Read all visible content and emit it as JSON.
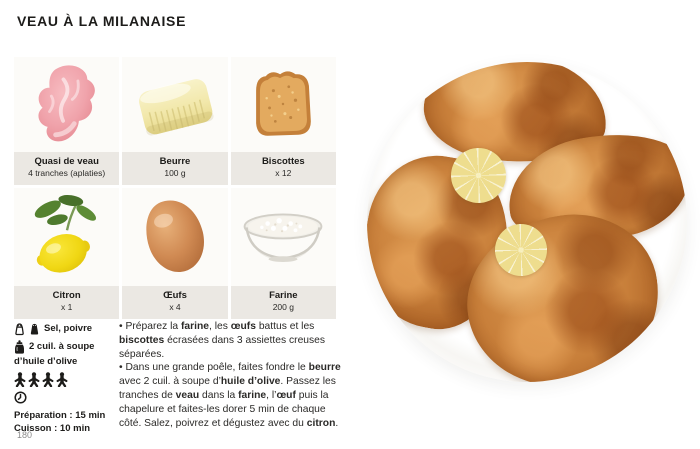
{
  "page": {
    "title": "VEAU À LA MILANAISE",
    "page_number": "180"
  },
  "ingredients": [
    {
      "name": "Quasi de veau",
      "qty": "4 tranches (aplaties)",
      "icon": "veal-slice-icon"
    },
    {
      "name": "Beurre",
      "qty": "100 g",
      "icon": "butter-icon"
    },
    {
      "name": "Biscottes",
      "qty": "x 12",
      "icon": "rusk-icon"
    },
    {
      "name": "Citron",
      "qty": "x 1",
      "icon": "lemon-icon"
    },
    {
      "name": "Œufs",
      "qty": "x 4",
      "icon": "egg-icon"
    },
    {
      "name": "Farine",
      "qty": "200 g",
      "icon": "flour-bowl-icon"
    }
  ],
  "info": {
    "seasoning": "Sel, poivre",
    "oil_line1": "2 cuil. à soupe",
    "oil_line2": "d’huile d’olive",
    "servings": 4,
    "prep": "Préparation : 15 min",
    "cook": "Cuisson : 10 min"
  },
  "instructions": [
    {
      "segments": [
        {
          "t": "• Préparez la "
        },
        {
          "t": "farine",
          "b": true
        },
        {
          "t": ", les "
        },
        {
          "t": "œufs",
          "b": true
        },
        {
          "t": " battus et les "
        },
        {
          "t": "biscottes",
          "b": true
        },
        {
          "t": " écrasées dans 3 assiettes creuses séparées."
        }
      ]
    },
    {
      "segments": [
        {
          "t": "• Dans une grande poêle, faites fondre le "
        },
        {
          "t": "beurre",
          "b": true
        },
        {
          "t": " avec 2 cuil. à soupe d’"
        },
        {
          "t": "huile d’olive",
          "b": true
        },
        {
          "t": ". Passez les tranches de "
        },
        {
          "t": "veau",
          "b": true
        },
        {
          "t": " dans la "
        },
        {
          "t": "farine",
          "b": true
        },
        {
          "t": ", l’"
        },
        {
          "t": "œuf",
          "b": true
        },
        {
          "t": " puis la chapelure et faites-les dorer 5 min de chaque côté. Salez, poivrez et dégustez avec du "
        },
        {
          "t": "citron",
          "b": true
        },
        {
          "t": "."
        }
      ]
    }
  ],
  "colors": {
    "label_band": "#ebe8e3",
    "accent_text": "#1d1c1a",
    "page_number": "#8b8b8b"
  }
}
